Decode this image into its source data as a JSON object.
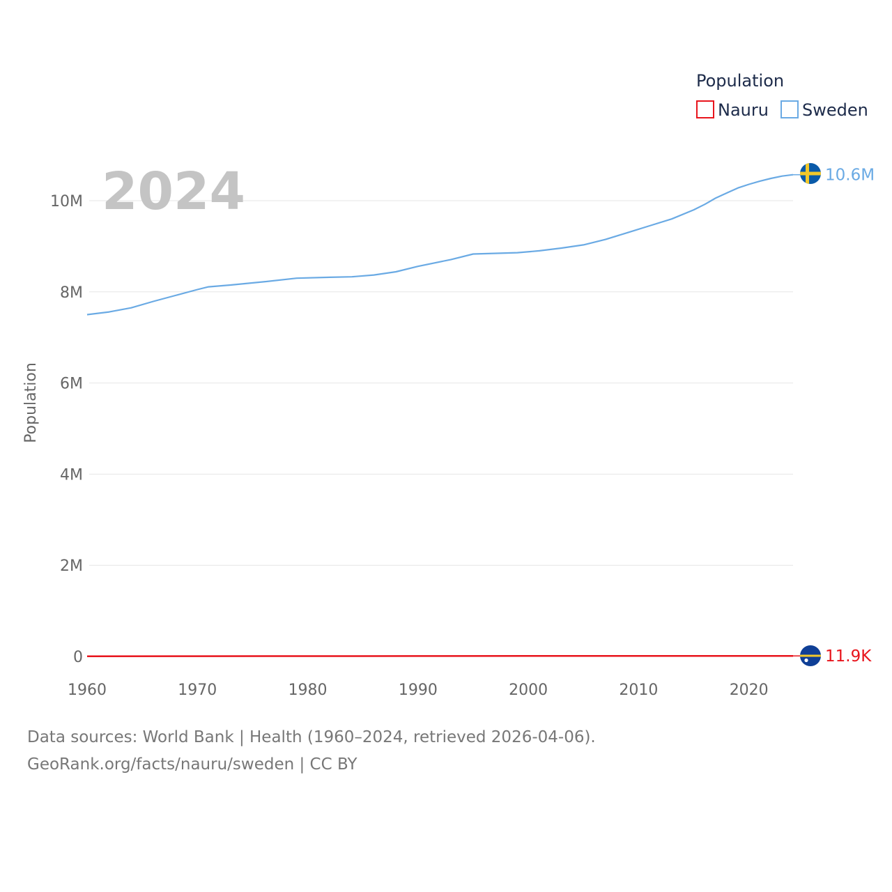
{
  "chart_data": {
    "type": "line",
    "title": "Population",
    "ylabel": "Population",
    "xlabel": "",
    "current_year": "2024",
    "xlim": [
      1960,
      2024
    ],
    "ylim": [
      0,
      10600000
    ],
    "x_ticks": [
      1960,
      1970,
      1980,
      1990,
      2000,
      2010,
      2020
    ],
    "y_ticks": [
      {
        "value": 0,
        "label": "0"
      },
      {
        "value": 2000000,
        "label": "2M"
      },
      {
        "value": 4000000,
        "label": "4M"
      },
      {
        "value": 6000000,
        "label": "6M"
      },
      {
        "value": 8000000,
        "label": "8M"
      },
      {
        "value": 10000000,
        "label": "10M"
      }
    ],
    "grid": true,
    "legend": "top-right",
    "series": [
      {
        "name": "Nauru",
        "color": "#e8141c",
        "end_label": "11.9K",
        "x": [
          1960,
          1970,
          1980,
          1990,
          2000,
          2010,
          2020,
          2024
        ],
        "values": [
          4400,
          6700,
          7600,
          9600,
          10400,
          10200,
          11600,
          11900
        ]
      },
      {
        "name": "Sweden",
        "color": "#6aaae4",
        "end_label": "10.6M",
        "x": [
          1960,
          1962,
          1964,
          1966,
          1968,
          1970,
          1971,
          1973,
          1976,
          1979,
          1982,
          1984,
          1986,
          1988,
          1990,
          1993,
          1995,
          1999,
          2001,
          2003,
          2005,
          2007,
          2009,
          2011,
          2013,
          2015,
          2016,
          2017,
          2018,
          2019,
          2020,
          2021,
          2022,
          2023,
          2024
        ],
        "values": [
          7500000,
          7560000,
          7650000,
          7790000,
          7920000,
          8050000,
          8110000,
          8150000,
          8220000,
          8300000,
          8320000,
          8330000,
          8370000,
          8440000,
          8560000,
          8710000,
          8830000,
          8860000,
          8900000,
          8960000,
          9030000,
          9150000,
          9300000,
          9450000,
          9600000,
          9800000,
          9920000,
          10060000,
          10170000,
          10280000,
          10360000,
          10430000,
          10490000,
          10540000,
          10570000
        ]
      }
    ]
  },
  "footer": {
    "line1": "Data sources: World Bank | Health (1960–2024, retrieved 2026-04-06).",
    "line2": "GeoRank.org/facts/nauru/sweden | CC BY"
  }
}
